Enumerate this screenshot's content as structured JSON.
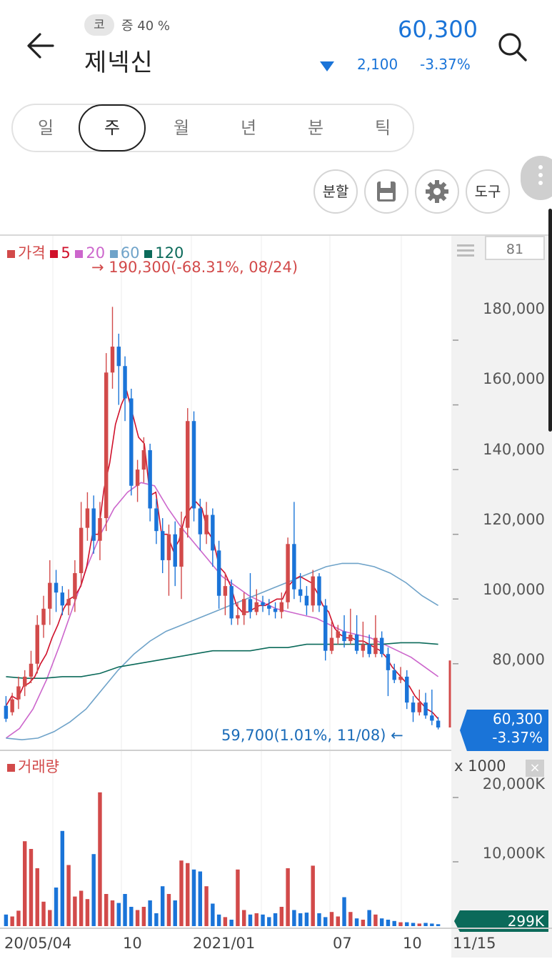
{
  "header": {
    "market_badge": "코",
    "margin_rate": "증 40 %",
    "stock_name": "제넥신",
    "price": "60,300",
    "change": "2,100",
    "change_pct": "-3.37%",
    "colors": {
      "down": "#1a74d8",
      "up": "#d24a4a"
    }
  },
  "period_tabs": [
    {
      "label": "일",
      "selected": false
    },
    {
      "label": "주",
      "selected": true
    },
    {
      "label": "월",
      "selected": false
    },
    {
      "label": "년",
      "selected": false
    },
    {
      "label": "분",
      "selected": false
    },
    {
      "label": "틱",
      "selected": false
    }
  ],
  "tools": {
    "split": "분할",
    "save_icon": "save-icon",
    "settings_icon": "gear-icon",
    "drawing": "도구"
  },
  "chart": {
    "count_box": "81",
    "legend": [
      {
        "label": "가격",
        "color": "#d24a4a"
      },
      {
        "label": "5",
        "color": "#d0102a"
      },
      {
        "label": "20",
        "color": "#cc66cc"
      },
      {
        "label": "60",
        "color": "#6fa3c9"
      },
      {
        "label": "120",
        "color": "#0b6a5a"
      }
    ],
    "high_note": "→ 190,300(-68.31%, 08/24)",
    "low_note": "59,700(1.01%, 11/08)  ←",
    "price_tag_value": "60,300",
    "price_tag_pct": "-3.37%",
    "volume_title": "거래량",
    "volume_unit": "x 1000",
    "volume_close": "×",
    "volume_tag": "299K"
  },
  "chart_data": {
    "type": "candlestick",
    "title": "",
    "y_ticks": [
      {
        "value": 180000,
        "label": "180,000"
      },
      {
        "value": 160000,
        "label": "160,000"
      },
      {
        "value": 140000,
        "label": "140,000"
      },
      {
        "value": 120000,
        "label": "120,000"
      },
      {
        "value": 100000,
        "label": "100,000"
      },
      {
        "value": 80000,
        "label": "80,000"
      }
    ],
    "ylim": [
      55000,
      199000
    ],
    "volume_ticks": [
      {
        "value": 20000,
        "label": "20,000K"
      },
      {
        "value": 10000,
        "label": "10,000K"
      }
    ],
    "volume_ylim": [
      0,
      24000
    ],
    "x_labels": [
      "20/05/04",
      "10",
      "2021/01",
      "07",
      "10",
      "11/15"
    ],
    "candles": [
      [
        67000,
        63000,
        70000,
        62000
      ],
      [
        65000,
        69000,
        71000,
        64000
      ],
      [
        69000,
        73000,
        76000,
        66000
      ],
      [
        73000,
        76000,
        78000,
        70000
      ],
      [
        76000,
        80000,
        84000,
        74000
      ],
      [
        80000,
        92000,
        95000,
        77000
      ],
      [
        92000,
        97000,
        101000,
        88000
      ],
      [
        97000,
        105000,
        112000,
        92000
      ],
      [
        105000,
        102000,
        109000,
        96000
      ],
      [
        102000,
        98000,
        104000,
        95000
      ],
      [
        98000,
        100000,
        103000,
        95000
      ],
      [
        100000,
        108000,
        112000,
        96000
      ],
      [
        108000,
        122000,
        130000,
        104000
      ],
      [
        122000,
        128000,
        133000,
        118000
      ],
      [
        128000,
        118000,
        132000,
        114000
      ],
      [
        118000,
        125000,
        130000,
        112000
      ],
      [
        125000,
        170000,
        176000,
        121000
      ],
      [
        170000,
        178000,
        190300,
        165000
      ],
      [
        178000,
        172000,
        182000,
        160000
      ],
      [
        172000,
        162000,
        175000,
        155000
      ],
      [
        162000,
        135000,
        165000,
        132000
      ],
      [
        135000,
        140000,
        143000,
        130000
      ],
      [
        140000,
        146000,
        150000,
        136000
      ],
      [
        146000,
        128000,
        148000,
        124000
      ],
      [
        128000,
        121000,
        131000,
        117000
      ],
      [
        121000,
        112000,
        125000,
        108000
      ],
      [
        112000,
        120000,
        123000,
        101000
      ],
      [
        120000,
        110000,
        124000,
        104000
      ],
      [
        110000,
        122000,
        127000,
        100000
      ],
      [
        122000,
        155000,
        159000,
        119000
      ],
      [
        155000,
        128000,
        158000,
        124000
      ],
      [
        128000,
        120000,
        131000,
        115000
      ],
      [
        120000,
        126000,
        130000,
        117000
      ],
      [
        126000,
        115000,
        128000,
        110000
      ],
      [
        115000,
        101000,
        118000,
        97000
      ],
      [
        101000,
        104000,
        108000,
        95000
      ],
      [
        104000,
        94000,
        106000,
        92000
      ],
      [
        94000,
        95000,
        99000,
        92000
      ],
      [
        95000,
        100000,
        102000,
        92000
      ],
      [
        100000,
        96000,
        108000,
        94000
      ],
      [
        96000,
        99000,
        103000,
        95000
      ],
      [
        99000,
        98000,
        101000,
        96000
      ],
      [
        98000,
        97000,
        100000,
        95000
      ],
      [
        97000,
        96000,
        99000,
        94000
      ],
      [
        96000,
        99000,
        102000,
        94000
      ],
      [
        99000,
        117000,
        119000,
        97000
      ],
      [
        117000,
        103000,
        130000,
        100000
      ],
      [
        103000,
        101000,
        108000,
        99000
      ],
      [
        101000,
        98000,
        104000,
        95000
      ],
      [
        98000,
        107000,
        109000,
        96000
      ],
      [
        107000,
        98000,
        108000,
        96000
      ],
      [
        98000,
        84000,
        100000,
        81000
      ],
      [
        84000,
        88000,
        93000,
        83000
      ],
      [
        88000,
        90000,
        92000,
        86000
      ],
      [
        90000,
        87000,
        95000,
        85000
      ],
      [
        87000,
        89000,
        97000,
        86000
      ],
      [
        89000,
        84000,
        95000,
        83000
      ],
      [
        84000,
        86000,
        93000,
        82000
      ],
      [
        86000,
        83000,
        89000,
        82000
      ],
      [
        83000,
        88000,
        95000,
        82000
      ],
      [
        88000,
        83000,
        90000,
        82000
      ],
      [
        83000,
        78000,
        85000,
        70000
      ],
      [
        78000,
        75000,
        80000,
        74000
      ],
      [
        75000,
        76000,
        79000,
        74000
      ],
      [
        76000,
        68000,
        78000,
        66000
      ],
      [
        68000,
        65000,
        70000,
        62000
      ],
      [
        65000,
        68000,
        72000,
        64000
      ],
      [
        68000,
        64000,
        71000,
        63000
      ],
      [
        64000,
        62400,
        72000,
        61000
      ],
      [
        62400,
        60300,
        63500,
        59700
      ]
    ],
    "volume": [
      1800,
      1500,
      2400,
      13200,
      12000,
      9000,
      3800,
      2500,
      6000,
      14800,
      9500,
      4600,
      5500,
      4200,
      11200,
      20800,
      5000,
      4000,
      3600,
      5000,
      3000,
      2500,
      3000,
      4000,
      2000,
      6200,
      5000,
      4000,
      10200,
      9800,
      8800,
      8500,
      6200,
      3500,
      1800,
      1400,
      1000,
      8800,
      2500,
      1800,
      2000,
      1800,
      1400,
      2000,
      3000,
      9000,
      2500,
      2000,
      2100,
      9400,
      2000,
      1400,
      2200,
      1500,
      4500,
      2200,
      1200,
      1000,
      2500,
      1800,
      1200,
      1000,
      800,
      600,
      600,
      500,
      400,
      500,
      400,
      299
    ],
    "ma": {
      "5": [
        [
          67000,
          70000
        ],
        [
          69000,
          73000
        ],
        [
          74000,
          76000
        ],
        [
          80000,
          83000
        ],
        [
          88000,
          92000
        ],
        [
          97000,
          100000
        ],
        [
          101000,
          104000
        ],
        [
          110000,
          120000
        ],
        [
          120000,
          134000
        ],
        [
          142000,
          154000
        ],
        [
          160000,
          164000
        ],
        [
          157000,
          150000
        ],
        [
          148000,
          132000
        ],
        [
          133000,
          120000
        ],
        [
          120000,
          115000
        ],
        [
          118000,
          125000
        ],
        [
          128000,
          130000
        ],
        [
          128000,
          121000
        ],
        [
          118000,
          110000
        ],
        [
          108000,
          104000
        ],
        [
          98000,
          96000
        ],
        [
          96000,
          97000
        ],
        [
          98000,
          98000
        ],
        [
          99000,
          100000
        ],
        [
          100000,
          104000
        ],
        [
          106000,
          107000
        ],
        [
          106000,
          105000
        ],
        [
          102000,
          98000
        ],
        [
          96000,
          91000
        ],
        [
          89000,
          88000
        ],
        [
          88000,
          87000
        ],
        [
          87000,
          86000
        ],
        [
          85000,
          84000
        ],
        [
          82000,
          79000
        ],
        [
          77000,
          75000
        ],
        [
          73000,
          70000
        ],
        [
          68000,
          66000
        ],
        [
          65000,
          63000
        ]
      ]
    },
    "ma_lines": [
      {
        "name": "20",
        "color": "#cc66cc",
        "values": [
          57000,
          60000,
          66000,
          75000,
          86000,
          98000,
          110000,
          120000,
          128000,
          133000,
          136000,
          135000,
          128000,
          122000,
          117000,
          112000,
          107000,
          104000,
          101000,
          99000,
          97000,
          96000,
          95000,
          94000,
          92000,
          90000,
          89000,
          88000,
          86000,
          84000,
          82000,
          79000,
          76000
        ]
      },
      {
        "name": "60",
        "color": "#6fa3c9",
        "values": [
          57000,
          56500,
          57000,
          59000,
          62000,
          66000,
          72000,
          78000,
          83000,
          87000,
          90000,
          92000,
          94000,
          96000,
          98000,
          100000,
          102000,
          104000,
          106000,
          108000,
          110000,
          111000,
          111000,
          110000,
          108000,
          105000,
          101000,
          98000
        ]
      },
      {
        "name": "120",
        "color": "#0b6a5a",
        "values": [
          76000,
          75500,
          75500,
          76000,
          76000,
          77000,
          79000,
          80000,
          81000,
          82000,
          83000,
          84000,
          84000,
          84000,
          85000,
          85000,
          86000,
          86000,
          86000,
          86000,
          86000,
          86500,
          86500,
          86000
        ]
      }
    ],
    "grid": true,
    "legend": "top-left"
  }
}
